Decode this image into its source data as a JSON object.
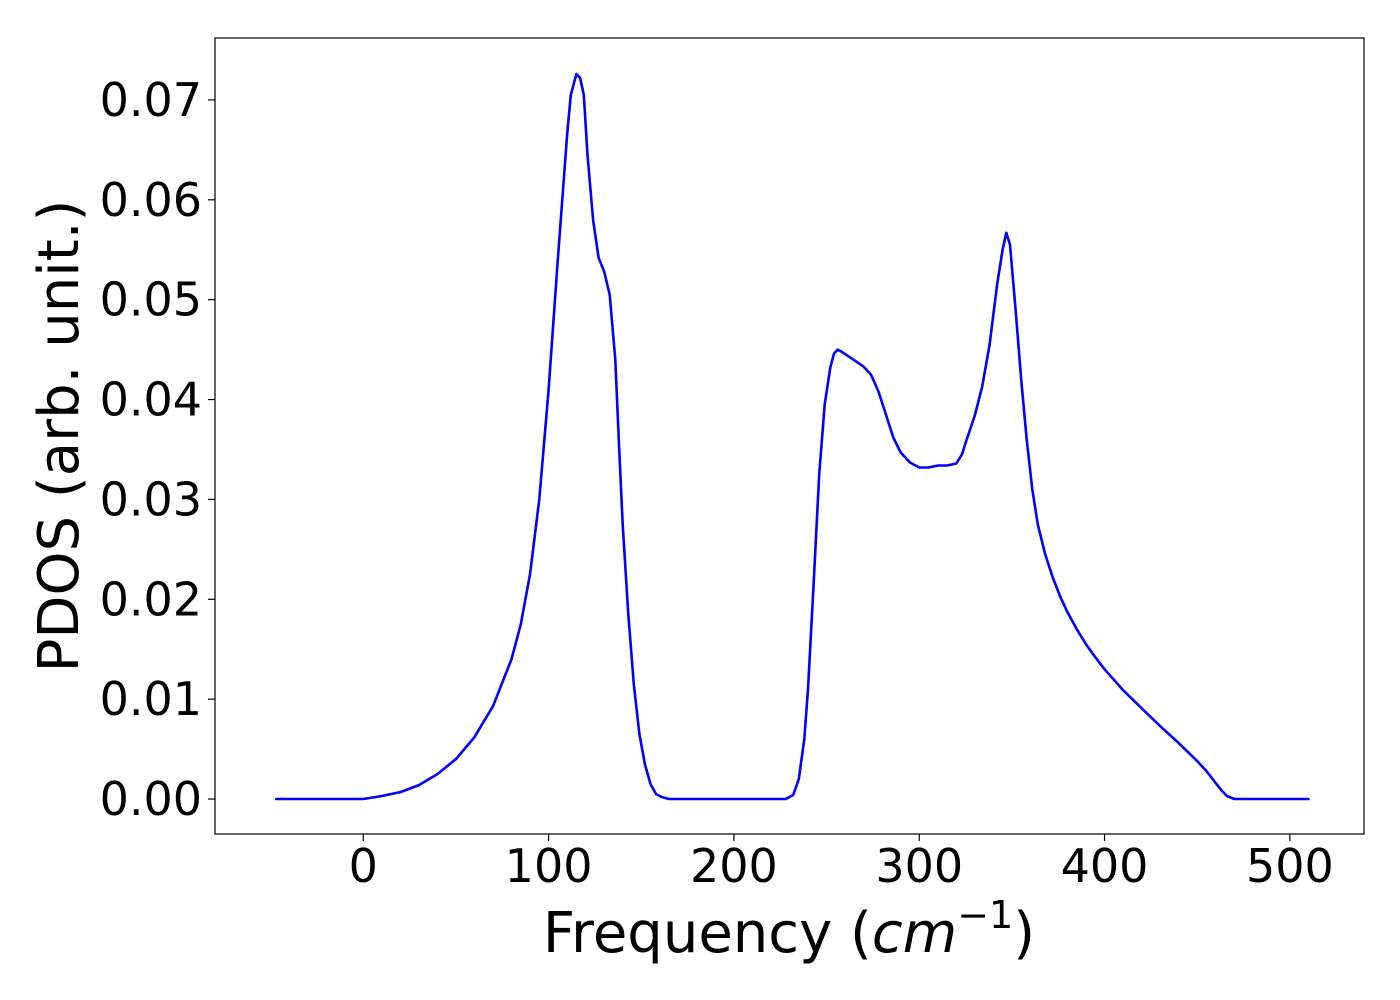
{
  "chart_data": {
    "type": "line",
    "title": "",
    "xlabel": "Frequency (",
    "xlabel_math": "cm",
    "xlabel_sup": "−1",
    "xlabel_close": ")",
    "ylabel": "PDOS (arb. unit.)",
    "xlim": [
      -80,
      540
    ],
    "ylim": [
      -0.0035,
      0.0762
    ],
    "grid": false,
    "legend": "none",
    "line_color": "#0000ff",
    "xticks": [
      0,
      100,
      200,
      300,
      400,
      500
    ],
    "xtick_labels": [
      "0",
      "100",
      "200",
      "300",
      "400",
      "500"
    ],
    "yticks": [
      0.0,
      0.01,
      0.02,
      0.03,
      0.04,
      0.05,
      0.06,
      0.07
    ],
    "ytick_labels": [
      "0.00",
      "0.01",
      "0.02",
      "0.03",
      "0.04",
      "0.05",
      "0.06",
      "0.07"
    ],
    "series": [
      {
        "x": [
          -47,
          -20,
          0,
          10,
          20,
          30,
          40,
          50,
          60,
          70,
          80,
          85,
          90,
          95,
          100,
          105,
          108,
          110,
          112,
          115,
          117,
          119,
          121,
          124,
          127,
          130,
          133,
          136,
          138,
          140,
          143,
          146,
          149,
          152,
          155,
          158,
          161,
          165,
          170,
          180,
          200,
          220,
          228,
          232,
          235,
          238,
          240,
          243,
          246,
          249,
          252,
          254,
          256,
          258,
          262,
          266,
          270,
          274,
          278,
          282,
          286,
          290,
          295,
          300,
          305,
          310,
          315,
          320,
          323,
          326,
          330,
          334,
          338,
          342,
          345,
          347,
          349,
          352,
          355,
          358,
          361,
          364,
          368,
          372,
          376,
          380,
          385,
          390,
          395,
          400,
          410,
          420,
          430,
          440,
          450,
          455,
          460,
          463,
          466,
          470,
          480,
          510
        ],
        "y": [
          0.0,
          0.0,
          0.0,
          0.0003,
          0.0007,
          0.0014,
          0.0025,
          0.004,
          0.0062,
          0.0093,
          0.014,
          0.0175,
          0.0225,
          0.03,
          0.041,
          0.054,
          0.0615,
          0.0665,
          0.0705,
          0.0726,
          0.0722,
          0.0705,
          0.0645,
          0.058,
          0.0542,
          0.0528,
          0.0505,
          0.044,
          0.0355,
          0.0275,
          0.0185,
          0.0115,
          0.0065,
          0.0035,
          0.0015,
          0.0005,
          0.0002,
          0.0,
          0.0,
          0.0,
          0.0,
          0.0,
          0.0,
          0.0004,
          0.002,
          0.006,
          0.011,
          0.0215,
          0.0325,
          0.0395,
          0.0432,
          0.0446,
          0.045,
          0.0448,
          0.0443,
          0.0438,
          0.0433,
          0.0425,
          0.0408,
          0.0385,
          0.0362,
          0.0347,
          0.0337,
          0.0332,
          0.0332,
          0.0334,
          0.0334,
          0.0336,
          0.0345,
          0.0362,
          0.0384,
          0.0413,
          0.0455,
          0.0515,
          0.055,
          0.0567,
          0.0555,
          0.049,
          0.042,
          0.036,
          0.031,
          0.0275,
          0.0245,
          0.0222,
          0.0203,
          0.0187,
          0.017,
          0.0155,
          0.0142,
          0.013,
          0.0109,
          0.0091,
          0.0073,
          0.0056,
          0.0038,
          0.0028,
          0.0016,
          0.0009,
          0.0003,
          0.0,
          0.0,
          0.0
        ]
      }
    ]
  }
}
